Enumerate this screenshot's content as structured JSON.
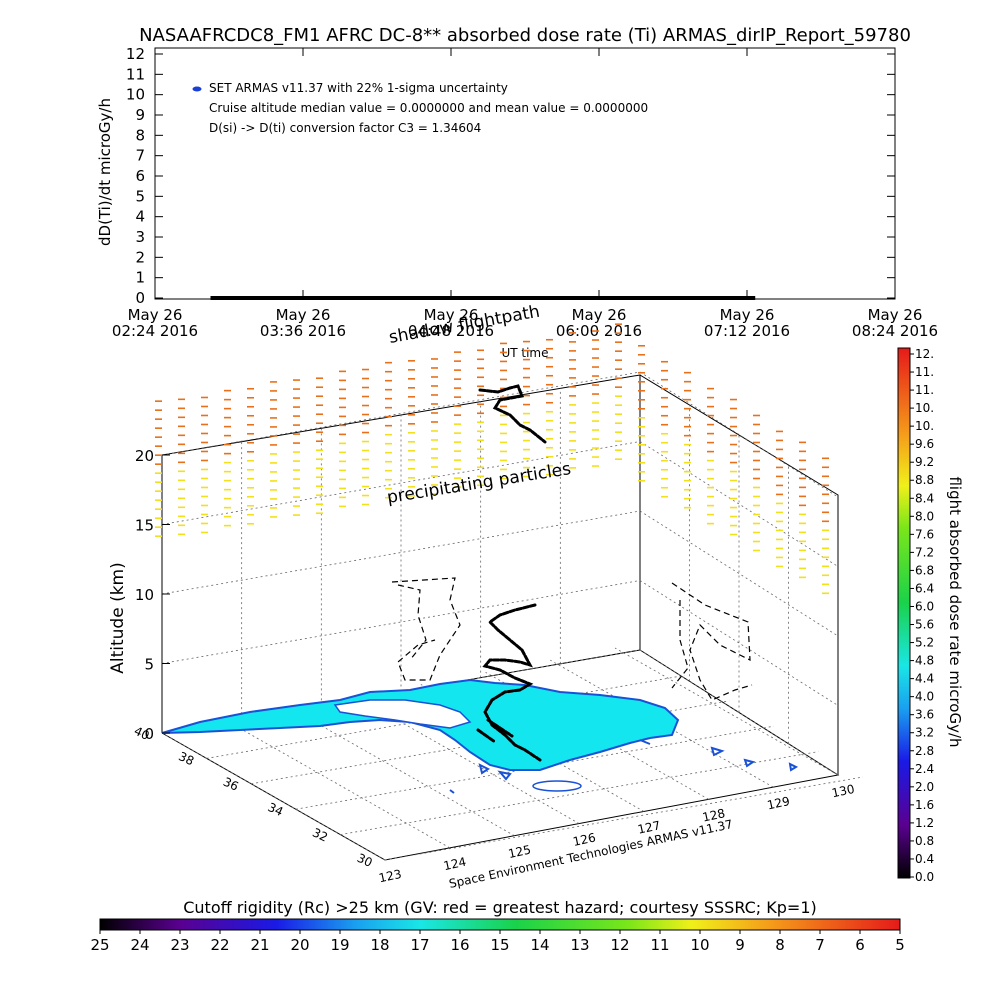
{
  "title": "NASAAFRCDC8_FM1 AFRC DC-8** absorbed dose rate (Ti) ARMAS_dirIP_Report_59780",
  "colors": {
    "cruise_dot": "#1a3fd9",
    "sea_fill": "#14e6f0",
    "coast": "#1a52d6",
    "flight": "#000000",
    "high_particles": "#e8701a",
    "low_particles": "#f2e01a"
  },
  "chart_data": [
    {
      "type": "line",
      "xlabel": "UT time",
      "ylabel": "dD(Ti)/dt microGy/h",
      "ylim": [
        0,
        12
      ],
      "yticks": [
        "0",
        "1",
        "2",
        "3",
        "4",
        "5",
        "6",
        "7",
        "8",
        "9",
        "10",
        "11",
        "12"
      ],
      "xtick_dates": [
        "May 26",
        "May 26",
        "May 26",
        "May 26",
        "May 26",
        "May 26"
      ],
      "xtick_times": [
        "02:24 2016",
        "03:36 2016",
        "04:48 2016",
        "06:00 2016",
        "07:12 2016",
        "08:24 2016"
      ],
      "legend": [
        "SET ARMAS v11.37 with 22% 1-sigma uncertainty",
        "Cruise altitude median value = 0.0000000 and mean value = 0.0000000",
        "D(si) -> D(ti) conversion factor C3 = 1.34604"
      ],
      "series": [
        {
          "name": "SET ARMAS v11.37 with 22% 1-sigma uncertainty",
          "x_start": "02:51 2016",
          "x_end": "07:16 2016",
          "y": 0.0
        }
      ]
    },
    {
      "type": "scatter",
      "zlabel": "Altitude (km)",
      "zticks": [
        "0",
        "5",
        "10",
        "15",
        "20"
      ],
      "lat_ticks": [
        "30",
        "32",
        "34",
        "36",
        "38",
        "40"
      ],
      "lon_ticks": [
        "123",
        "124",
        "125",
        "126",
        "127",
        "128",
        "129",
        "130"
      ],
      "annotations": [
        "shadow flightpath",
        "precipitating particles",
        "Space Environment Technologies ARMAS v11.37"
      ]
    }
  ],
  "dose_colorbar": {
    "label": "flight absorbed dose rate microGy/h",
    "ticks": [
      "12.",
      "11.",
      "11.",
      "10.",
      "10.",
      "9.6",
      "9.2",
      "8.8",
      "8.4",
      "8.0",
      "7.6",
      "7.2",
      "6.8",
      "6.4",
      "6.0",
      "5.6",
      "5.2",
      "4.8",
      "4.4",
      "4.0",
      "3.6",
      "3.2",
      "2.8",
      "2.4",
      "2.0",
      "1.6",
      "1.2",
      "0.8",
      "0.4",
      "0.0"
    ]
  },
  "rigidity_colorbar": {
    "label": "Cutoff rigidity (Rc) >25 km (GV: red = greatest hazard; courtesy SSSRC; Kp=1)",
    "ticks": [
      "25",
      "24",
      "23",
      "22",
      "21",
      "20",
      "19",
      "18",
      "17",
      "16",
      "15",
      "14",
      "13",
      "12",
      "11",
      "10",
      "9",
      "8",
      "7",
      "6",
      "5"
    ]
  }
}
